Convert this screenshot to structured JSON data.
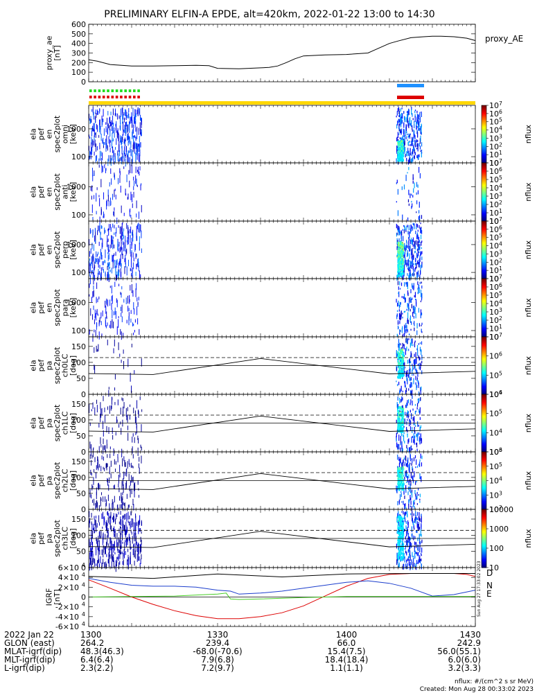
{
  "title": "PRELIMINARY ELFIN-A EPDE, alt=420km, 2022-01-22 13:00 to 14:30",
  "footer": {
    "units": "nflux: #/(cm^2 s sr MeV)",
    "created": "Created: Mon Aug 28 00:33:02 2023",
    "side_stamp": "Sun Aug 27 17:33:02 2023"
  },
  "colors": {
    "ae_line": "#000000",
    "bar_yellow": "#ffd700",
    "bar_blue": "#1e90ff",
    "bar_red": "#dd0000",
    "bar_green": "#22dd22",
    "igrf_d": "#dd0000",
    "igrf_n": "#1a3ccc",
    "igrf_e": "#44cc22"
  },
  "time_axis": {
    "start_min": 0,
    "end_min": 90,
    "ticks": [
      {
        "t": 0,
        "label": "1300"
      },
      {
        "t": 30,
        "label": "1330"
      },
      {
        "t": 60,
        "label": "1400"
      },
      {
        "t": 90,
        "label": "1430"
      }
    ]
  },
  "ephemeris": {
    "rows": [
      {
        "label": "2022 Jan 22",
        "values": [
          "1300",
          "1330",
          "1400",
          "1430"
        ]
      },
      {
        "label": "GLON (east)",
        "values": [
          "264.2",
          "239.4",
          "66.0",
          "242.9"
        ]
      },
      {
        "label": "MLAT-igrf(dip)",
        "values": [
          "48.3(46.3)",
          "-68.0(-70.6)",
          "15.4(7.5)",
          "56.0(55.1)"
        ]
      },
      {
        "label": "MLT-igrf(dip)",
        "values": [
          "6.4(6.4)",
          "7.9(6.8)",
          "18.4(18.4)",
          "6.0(6.0)"
        ]
      },
      {
        "label": "L-igrf(dip)",
        "values": [
          "2.3(2.2)",
          "7.2(9.7)",
          "1.1(1.1)",
          "3.2(3.3)"
        ]
      }
    ]
  },
  "chart_data": [
    {
      "type": "line",
      "panel": "proxy_ae",
      "ylabel": [
        "proxy_ae",
        "[nT]"
      ],
      "legend": "proxy_AE",
      "ylim": [
        0,
        600
      ],
      "yticks": [
        0,
        100,
        200,
        300,
        400,
        500,
        600
      ],
      "x": [
        0,
        2,
        5,
        10,
        15,
        20,
        25,
        28,
        30,
        35,
        40,
        42,
        44,
        46,
        48,
        50,
        55,
        60,
        65,
        66,
        68,
        70,
        72,
        75,
        78,
        80,
        82,
        85,
        88,
        90
      ],
      "values": [
        230,
        215,
        180,
        165,
        165,
        168,
        172,
        168,
        140,
        135,
        145,
        150,
        165,
        200,
        240,
        270,
        280,
        285,
        300,
        320,
        360,
        400,
        425,
        460,
        470,
        475,
        475,
        470,
        455,
        430
      ]
    },
    {
      "type": "heatmap",
      "panel": "spec-omni",
      "ylabel": [
        "ela",
        "pef",
        "en",
        "spec2plot",
        "omni",
        "[keV]"
      ],
      "yscale": "log",
      "ylim": [
        60,
        7000
      ],
      "yticks": [
        100,
        1000
      ],
      "colorbar": {
        "label": "nflux",
        "scale": "log",
        "range": [
          10,
          10000000
        ],
        "ticks": [
          "10",
          "10^1",
          "10^2",
          "10^3",
          "10^4",
          "10^5",
          "10^6",
          "10^7"
        ]
      }
    },
    {
      "type": "heatmap",
      "panel": "spec-anti",
      "ylabel": [
        "ela",
        "pef",
        "en",
        "spec2plot",
        "anti",
        "[keV]"
      ],
      "yscale": "log",
      "ylim": [
        60,
        7000
      ],
      "yticks": [
        100,
        1000
      ],
      "colorbar": {
        "label": "nflux",
        "scale": "log",
        "range": [
          10,
          10000000
        ],
        "ticks": [
          "10",
          "10^1",
          "10^2",
          "10^3",
          "10^4",
          "10^5",
          "10^6",
          "10^7"
        ]
      }
    },
    {
      "type": "heatmap",
      "panel": "spec-perp",
      "ylabel": [
        "ela",
        "pef",
        "en",
        "spec2plot",
        "perp",
        "[keV]"
      ],
      "yscale": "log",
      "ylim": [
        60,
        7000
      ],
      "yticks": [
        100,
        1000
      ],
      "colorbar": {
        "label": "nflux",
        "scale": "log",
        "range": [
          10,
          10000000
        ],
        "ticks": [
          "10",
          "10^1",
          "10^2",
          "10^3",
          "10^4",
          "10^5",
          "10^6",
          "10^7"
        ]
      }
    },
    {
      "type": "heatmap",
      "panel": "spec-para",
      "ylabel": [
        "ela",
        "pef",
        "en",
        "spec2plot",
        "para",
        "[keV]"
      ],
      "yscale": "log",
      "ylim": [
        60,
        7000
      ],
      "yticks": [
        100,
        1000
      ],
      "colorbar": {
        "label": "nflux",
        "scale": "log",
        "range": [
          10,
          10000000
        ],
        "ticks": [
          "10",
          "10^1",
          "10^2",
          "10^3",
          "10^4",
          "10^5",
          "10^6",
          "10^7"
        ]
      }
    },
    {
      "type": "heatmap",
      "panel": "pa-ch0",
      "ylabel": [
        "ela",
        "pef",
        "pa",
        "spec2plot",
        "ch0LC",
        "[deg]"
      ],
      "ylim": [
        0,
        180
      ],
      "yticks": [
        0,
        50,
        100,
        150
      ],
      "colorbar": {
        "label": "nflux",
        "scale": "log",
        "range": [
          10000,
          10000000
        ],
        "ticks": [
          "10^4",
          "10^5",
          "10^6",
          "10^7"
        ]
      }
    },
    {
      "type": "heatmap",
      "panel": "pa-ch1",
      "ylabel": [
        "ela",
        "pef",
        "pa",
        "spec2plot",
        "ch1LC",
        "[deg]"
      ],
      "ylim": [
        0,
        180
      ],
      "yticks": [
        0,
        50,
        100,
        150
      ],
      "colorbar": {
        "label": "nflux",
        "scale": "log",
        "range": [
          1000,
          1000000
        ],
        "ticks": [
          "10^3",
          "10^4",
          "10^5",
          "10^6"
        ]
      }
    },
    {
      "type": "heatmap",
      "panel": "pa-ch2",
      "ylabel": [
        "ela",
        "pef",
        "pa",
        "spec2plot",
        "ch2LC",
        "[deg]"
      ],
      "ylim": [
        0,
        180
      ],
      "yticks": [
        0,
        50,
        100,
        150
      ],
      "colorbar": {
        "label": "nflux",
        "scale": "log",
        "range": [
          100,
          1000000
        ],
        "ticks": [
          "10^2",
          "10^3",
          "10^4",
          "10^5",
          "10^6"
        ]
      }
    },
    {
      "type": "heatmap",
      "panel": "pa-ch3",
      "ylabel": [
        "ela",
        "pef",
        "pa",
        "spec2plot",
        "ch3LC",
        "[deg]"
      ],
      "ylim": [
        0,
        180
      ],
      "yticks": [
        0,
        50,
        100,
        150
      ],
      "colorbar": {
        "label": "nflux",
        "scale": "log",
        "range": [
          10,
          10000
        ],
        "ticks": [
          "10",
          "100",
          "1000",
          "10000"
        ]
      }
    },
    {
      "type": "line",
      "panel": "igrf",
      "ylabel": [
        "IGRF",
        "[nT]"
      ],
      "ylim": [
        -60000,
        60000
      ],
      "yticks": [
        "-6×10^4",
        "-4×10^4",
        "-2×10^4",
        "0",
        "2×10^4",
        "4×10^4",
        "6×10^4"
      ],
      "ytick_values": [
        -60000,
        -40000,
        -20000,
        0,
        20000,
        40000,
        60000
      ],
      "series": [
        {
          "name": "D",
          "x": [
            0,
            5,
            10,
            15,
            20,
            25,
            30,
            35,
            40,
            45,
            50,
            55,
            60,
            65,
            70,
            75,
            80,
            85,
            88,
            90
          ],
          "values": [
            35000,
            18000,
            0,
            -15000,
            -28000,
            -38000,
            -44000,
            -44000,
            -40000,
            -32000,
            -18000,
            2000,
            22000,
            38000,
            46000,
            48000,
            48000,
            48000,
            46000,
            42000
          ]
        },
        {
          "name": "N",
          "x": [
            0,
            5,
            10,
            15,
            20,
            25,
            30,
            33,
            35,
            40,
            45,
            50,
            55,
            60,
            65,
            70,
            75,
            80,
            85,
            90
          ],
          "values": [
            38000,
            30000,
            24000,
            22000,
            22000,
            20000,
            14000,
            12000,
            6000,
            8000,
            12000,
            18000,
            24000,
            30000,
            33000,
            28000,
            18000,
            2000,
            5000,
            14000
          ]
        },
        {
          "name": "E",
          "x": [
            0,
            10,
            20,
            30,
            32,
            33,
            35,
            40,
            50,
            60,
            70,
            80,
            90
          ],
          "values": [
            0,
            1000,
            2000,
            6000,
            8000,
            -4000,
            -5000,
            -4000,
            -1000,
            1000,
            1000,
            1000,
            1000
          ]
        },
        {
          "name": "",
          "x": [
            0,
            15,
            30,
            45,
            60,
            75,
            90
          ],
          "values": [
            42000,
            38000,
            47000,
            41000,
            47000,
            48000,
            48000
          ]
        }
      ]
    }
  ]
}
